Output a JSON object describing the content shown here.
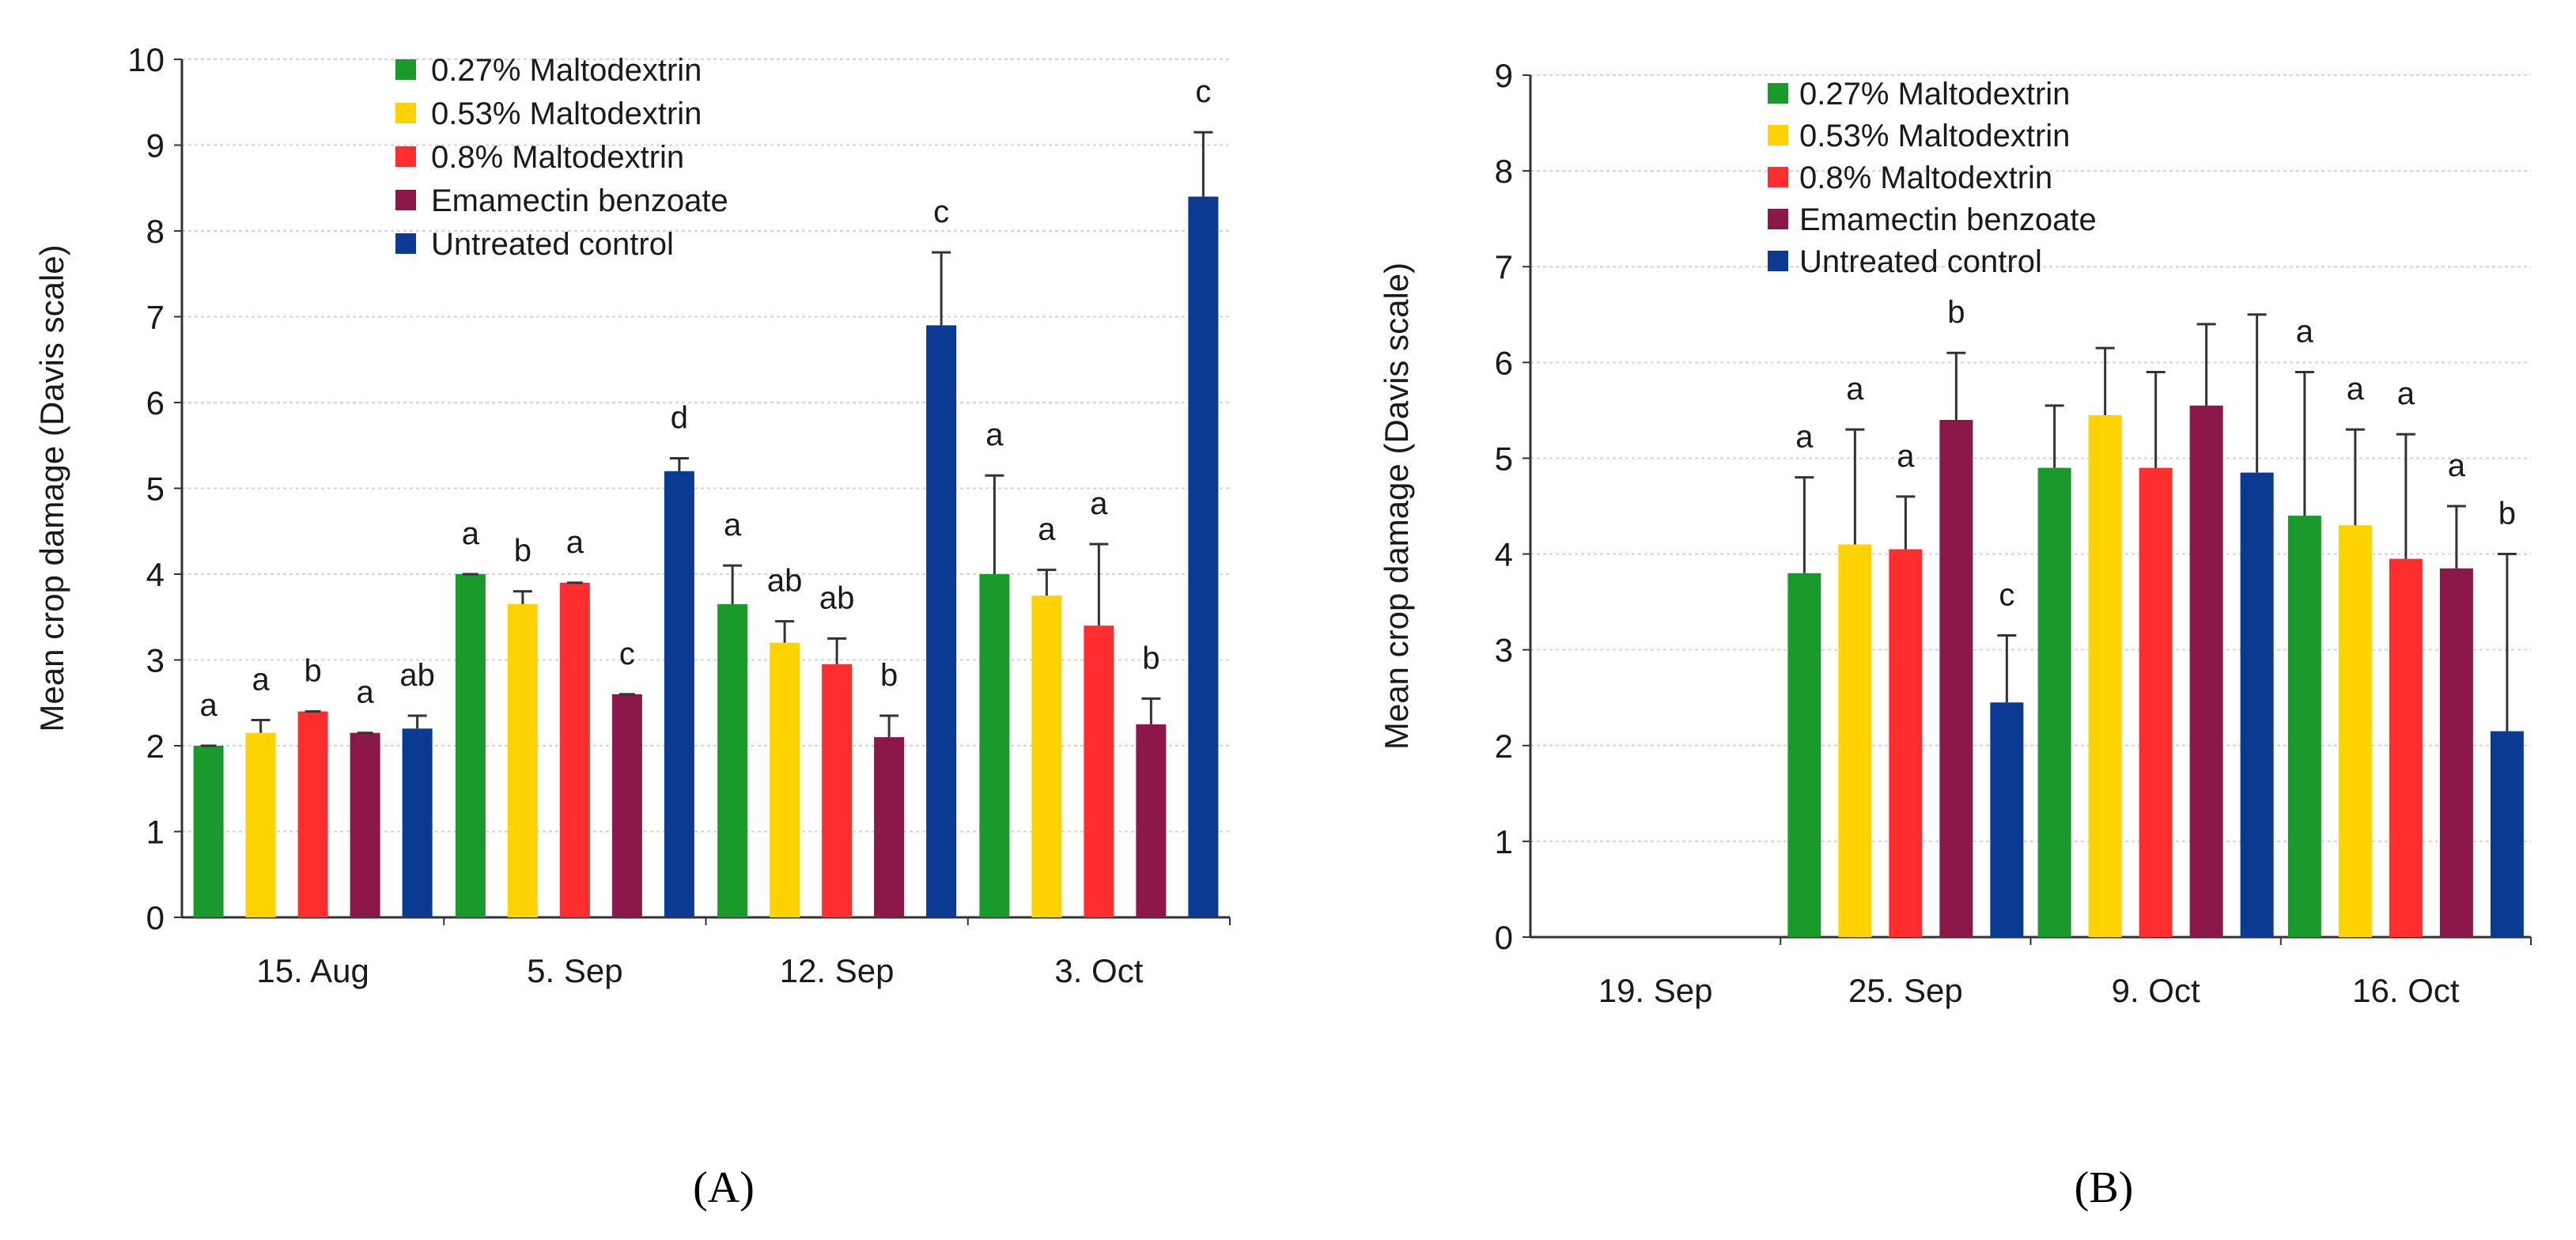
{
  "figure": {
    "captions": [
      "(A)",
      "(B)"
    ],
    "caption_letters": [
      "A",
      "B"
    ],
    "colors": {
      "0.27% Maltodextrin": "#1a9a2a",
      "0.53% Maltodextrin": "#ffd200",
      "0.8% Maltodextrin": "#ff2e2e",
      "Emamectin benzoate": "#8b1848",
      "Untreated control": "#0b3a93"
    },
    "legend_labels": [
      "0.27%  Maltodextrin",
      "0.53%  Maltodextrin",
      "0.8%  Maltodextrin",
      "Emamectin   benzoate",
      "Untreated control"
    ]
  },
  "chart_data": [
    {
      "type": "bar",
      "panel": "A",
      "ylabel": "Mean crop damage (Davis scale)",
      "xlabel": "",
      "ylim": [
        0,
        10
      ],
      "yticks": [
        0,
        1,
        2,
        3,
        4,
        5,
        6,
        7,
        8,
        9,
        10
      ],
      "grid": true,
      "legend": "top-left",
      "categories": [
        "15. Aug",
        "5. Sep",
        "12. Sep",
        "3. Oct"
      ],
      "series": [
        {
          "name": "0.27% Maltodextrin",
          "values": [
            2.0,
            4.0,
            3.65,
            4.0
          ],
          "errors": [
            0.0,
            0.0,
            0.45,
            1.15
          ],
          "letters": [
            "a",
            "a",
            "a",
            "a"
          ]
        },
        {
          "name": "0.53% Maltodextrin",
          "values": [
            2.15,
            3.65,
            3.2,
            3.75
          ],
          "errors": [
            0.15,
            0.15,
            0.25,
            0.3
          ],
          "letters": [
            "a",
            "b",
            "ab",
            "a"
          ]
        },
        {
          "name": "0.8% Maltodextrin",
          "values": [
            2.4,
            3.9,
            2.95,
            3.4
          ],
          "errors": [
            0.0,
            0.0,
            0.3,
            0.95
          ],
          "letters": [
            "b",
            "a",
            "ab",
            "a"
          ]
        },
        {
          "name": "Emamectin benzoate",
          "values": [
            2.15,
            2.6,
            2.1,
            2.25
          ],
          "errors": [
            0.0,
            0.0,
            0.25,
            0.3
          ],
          "letters": [
            "a",
            "c",
            "b",
            "b"
          ]
        },
        {
          "name": "Untreated control",
          "values": [
            2.2,
            5.2,
            6.9,
            8.4
          ],
          "errors": [
            0.15,
            0.15,
            0.85,
            0.75
          ],
          "letters": [
            "ab",
            "d",
            "c",
            "c"
          ]
        }
      ]
    },
    {
      "type": "bar",
      "panel": "B",
      "ylabel": "Mean crop damage (Davis scale)",
      "xlabel": "",
      "ylim": [
        0,
        9
      ],
      "yticks": [
        0,
        1,
        2,
        3,
        4,
        5,
        6,
        7,
        8,
        9
      ],
      "grid": true,
      "legend": "top-left",
      "categories": [
        "19. Sep",
        "25. Sep",
        "9. Oct",
        "16. Oct"
      ],
      "series": [
        {
          "name": "0.27% Maltodextrin",
          "values": [
            0,
            3.8,
            4.9,
            4.4
          ],
          "errors": [
            0,
            1.0,
            0.65,
            1.5
          ],
          "letters": [
            "",
            "a",
            "",
            "a"
          ]
        },
        {
          "name": "0.53% Maltodextrin",
          "values": [
            0,
            4.1,
            5.45,
            4.3
          ],
          "errors": [
            0,
            1.2,
            0.7,
            1.0
          ],
          "letters": [
            "",
            "a",
            "",
            "a"
          ]
        },
        {
          "name": "0.8% Maltodextrin",
          "values": [
            0,
            4.05,
            4.9,
            3.95
          ],
          "errors": [
            0,
            0.55,
            1.0,
            1.3
          ],
          "letters": [
            "",
            "a",
            "",
            "a"
          ]
        },
        {
          "name": "Emamectin benzoate",
          "values": [
            0,
            5.4,
            5.55,
            3.85
          ],
          "errors": [
            0,
            0.7,
            0.85,
            0.65
          ],
          "letters": [
            "",
            "b",
            "",
            "a"
          ]
        },
        {
          "name": "Untreated control",
          "values": [
            0,
            2.45,
            4.85,
            2.15
          ],
          "errors": [
            0,
            0.7,
            1.65,
            1.85
          ],
          "letters": [
            "",
            "c",
            "",
            "b"
          ]
        }
      ]
    }
  ]
}
